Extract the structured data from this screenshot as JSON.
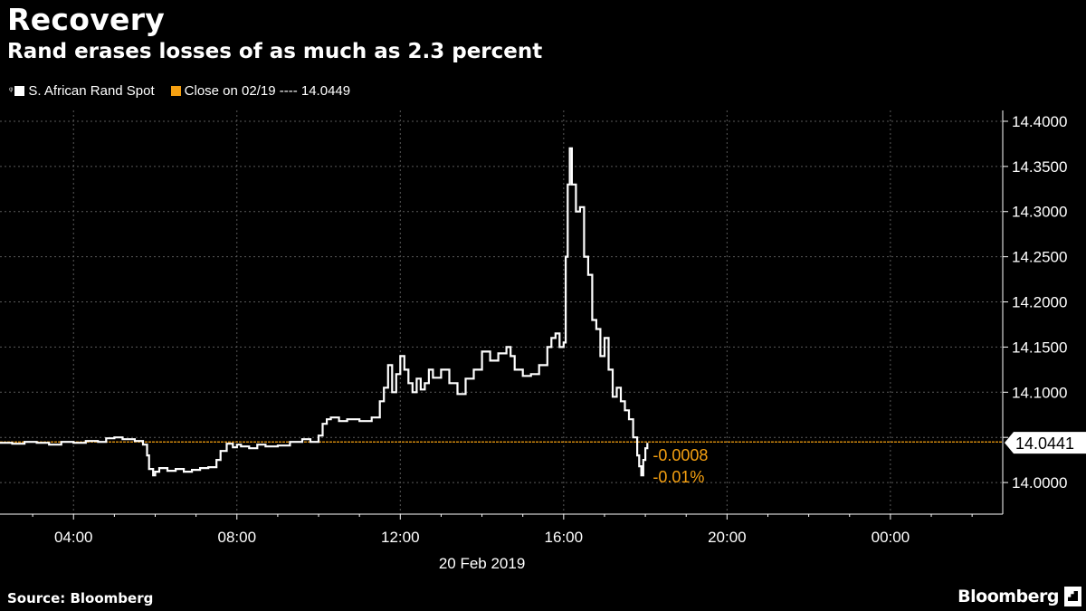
{
  "header": {
    "title": "Recovery",
    "subtitle": "Rand erases losses of as much as 2.3 percent"
  },
  "legend": {
    "series_label": "S. African Rand Spot",
    "close_label": "Close on 02/19 ---- 14.0449"
  },
  "footer": {
    "source": "Source: Bloomberg",
    "brand": "Bloomberg"
  },
  "colors": {
    "background": "#000000",
    "series": "#ffffff",
    "close_line": "#f5a011",
    "grid": "#5a5a5a",
    "axis": "#ffffff"
  },
  "chart_data": {
    "type": "line",
    "title": "Recovery",
    "subtitle": "Rand erases losses of as much as 2.3 percent",
    "date_label": "20 Feb 2019",
    "x_unit": "hour of 20 Feb 2019",
    "xlim": [
      2.2,
      26.75
    ],
    "ylim": [
      13.965,
      14.412
    ],
    "x_ticks": [
      4,
      8,
      12,
      16,
      20,
      24
    ],
    "x_tick_labels": [
      "04:00",
      "08:00",
      "12:00",
      "16:00",
      "20:00",
      "00:00"
    ],
    "y_ticks": [
      14.0,
      14.05,
      14.1,
      14.15,
      14.2,
      14.25,
      14.3,
      14.35,
      14.4
    ],
    "y_tick_labels": [
      "14.0000",
      "14.0500",
      "14.1000",
      "14.1500",
      "14.2000",
      "14.2500",
      "14.3000",
      "14.3500",
      "14.4000"
    ],
    "grid": true,
    "legend_position": "top-left",
    "reference_line": {
      "name": "Close on 02/19",
      "value": 14.0449
    },
    "last_value": {
      "value": 14.0441,
      "label": "14.0441",
      "change": "-0.0008",
      "change_pct": "-0.01%"
    },
    "series": [
      {
        "name": "S. African Rand Spot",
        "x": [
          2.2,
          2.5,
          2.8,
          3.1,
          3.4,
          3.7,
          4.0,
          4.3,
          4.6,
          4.8,
          5.0,
          5.2,
          5.5,
          5.7,
          5.8,
          5.85,
          5.95,
          6.0,
          6.1,
          6.3,
          6.5,
          6.7,
          6.9,
          7.1,
          7.3,
          7.5,
          7.6,
          7.75,
          7.9,
          8.0,
          8.1,
          8.3,
          8.5,
          8.7,
          9.0,
          9.3,
          9.6,
          9.8,
          10.0,
          10.1,
          10.2,
          10.3,
          10.5,
          10.7,
          11.0,
          11.3,
          11.5,
          11.6,
          11.7,
          11.8,
          11.9,
          12.0,
          12.1,
          12.2,
          12.3,
          12.4,
          12.5,
          12.6,
          12.7,
          12.8,
          13.0,
          13.2,
          13.4,
          13.6,
          13.8,
          14.0,
          14.2,
          14.4,
          14.6,
          14.7,
          14.8,
          15.0,
          15.2,
          15.4,
          15.6,
          15.7,
          15.8,
          15.9,
          16.0,
          16.05,
          16.1,
          16.15,
          16.2,
          16.3,
          16.4,
          16.5,
          16.6,
          16.7,
          16.8,
          16.9,
          17.0,
          17.1,
          17.2,
          17.3,
          17.4,
          17.5,
          17.6,
          17.7,
          17.8,
          17.85,
          17.9,
          17.95,
          18.0,
          18.05
        ],
        "y": [
          14.044,
          14.043,
          14.045,
          14.044,
          14.042,
          14.045,
          14.044,
          14.046,
          14.045,
          14.049,
          14.05,
          14.048,
          14.046,
          14.042,
          14.03,
          14.015,
          14.008,
          14.012,
          14.016,
          14.013,
          14.015,
          14.012,
          14.014,
          14.016,
          14.017,
          14.025,
          14.035,
          14.043,
          14.039,
          14.042,
          14.04,
          14.038,
          14.042,
          14.04,
          14.041,
          14.045,
          14.048,
          14.045,
          14.052,
          14.065,
          14.07,
          14.072,
          14.068,
          14.07,
          14.068,
          14.072,
          14.09,
          14.105,
          14.13,
          14.1,
          14.12,
          14.14,
          14.125,
          14.11,
          14.1,
          14.115,
          14.103,
          14.11,
          14.125,
          14.116,
          14.125,
          14.11,
          14.098,
          14.115,
          14.125,
          14.145,
          14.135,
          14.143,
          14.15,
          14.14,
          14.125,
          14.118,
          14.12,
          14.13,
          14.15,
          14.16,
          14.165,
          14.15,
          14.155,
          14.25,
          14.33,
          14.37,
          14.33,
          14.3,
          14.305,
          14.25,
          14.23,
          14.18,
          14.17,
          14.14,
          14.16,
          14.125,
          14.095,
          14.105,
          14.09,
          14.08,
          14.07,
          14.05,
          14.03,
          14.018,
          14.008,
          14.025,
          14.038,
          14.044
        ]
      }
    ]
  }
}
